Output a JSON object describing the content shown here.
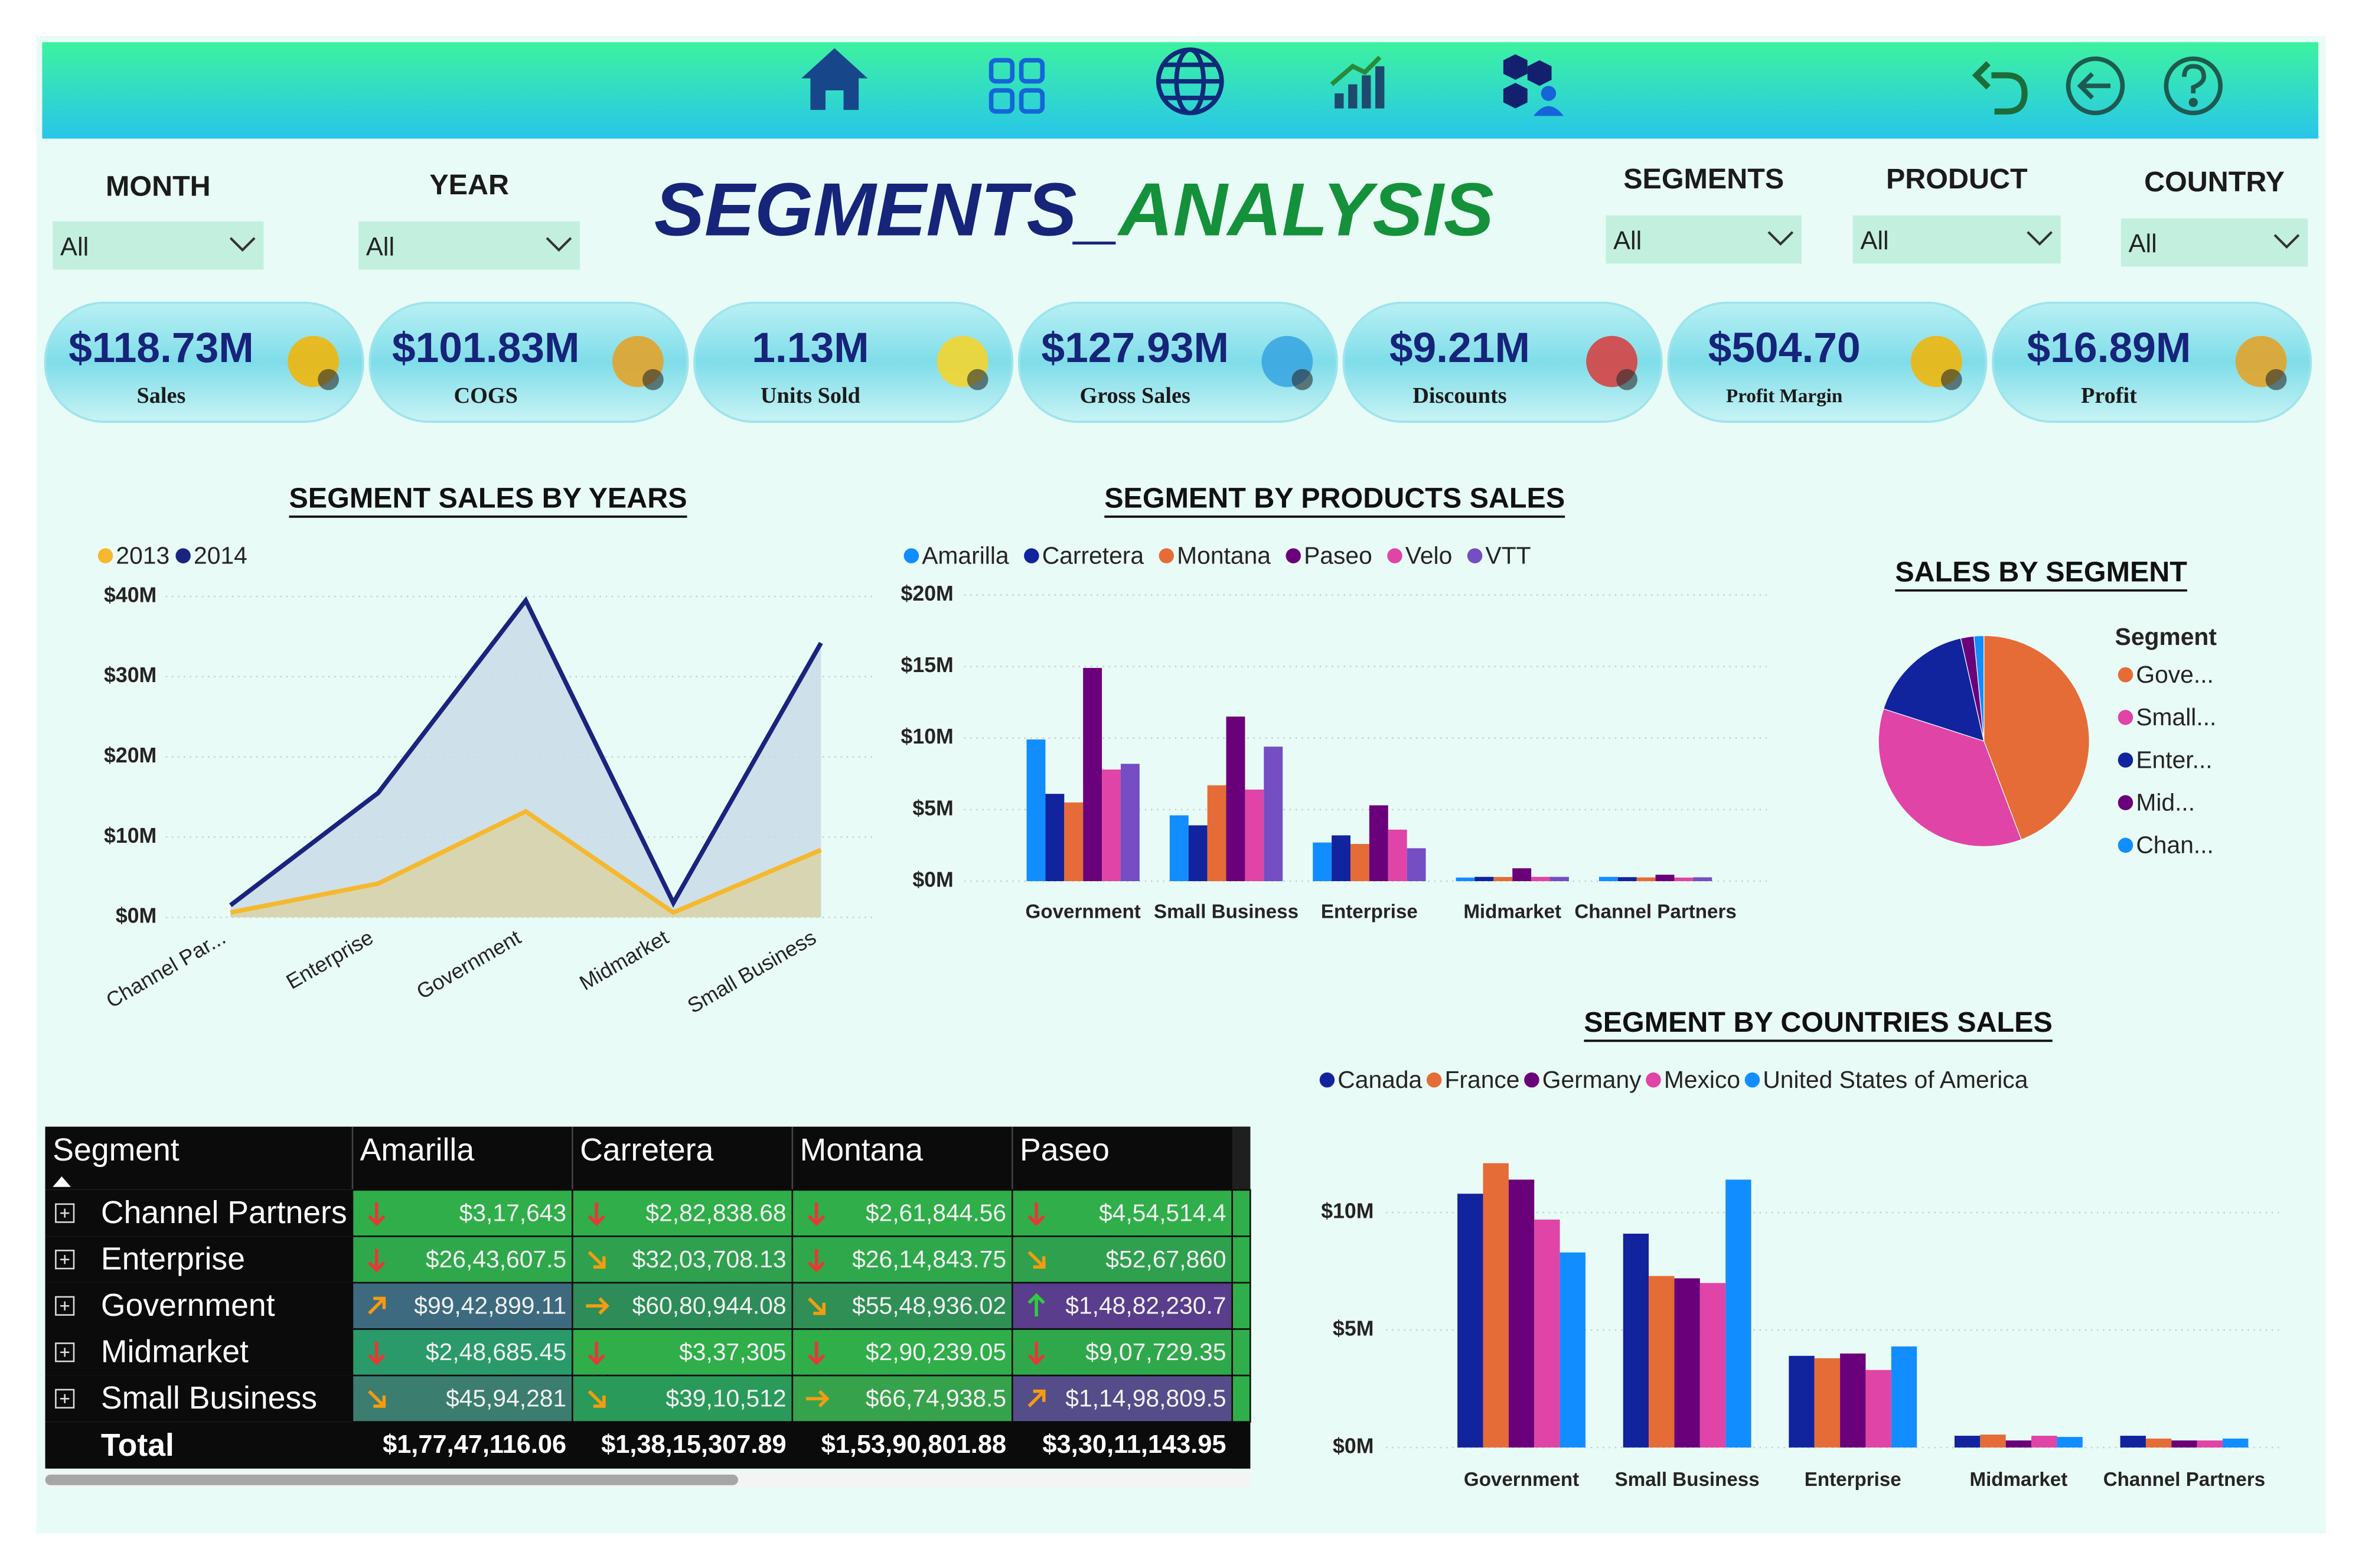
{
  "header": {
    "title_part1": "SEGMENTS_",
    "title_part2": "ANALYSIS"
  },
  "filters": [
    {
      "label": "MONTH",
      "value": "All"
    },
    {
      "label": "YEAR",
      "value": "All"
    },
    {
      "label": "SEGMENTS",
      "value": "All"
    },
    {
      "label": "PRODUCT",
      "value": "All"
    },
    {
      "label": "COUNTRY",
      "value": "All"
    }
  ],
  "kpis": [
    {
      "value": "$118.73M",
      "label": "Sales"
    },
    {
      "value": "$101.83M",
      "label": "COGS"
    },
    {
      "value": "1.13M",
      "label": "Units Sold"
    },
    {
      "value": "$127.93M",
      "label": "Gross Sales"
    },
    {
      "value": "$9.21M",
      "label": "Discounts"
    },
    {
      "value": "$504.70",
      "label": "Profit Margin"
    },
    {
      "value": "$16.89M",
      "label": "Profit"
    }
  ],
  "chart_data": [
    {
      "type": "area",
      "title": "SEGMENT SALES BY YEARS",
      "categories": [
        "Channel Par...",
        "Enterprise",
        "Government",
        "Midmarket",
        "Small Business"
      ],
      "series": [
        {
          "name": "2013",
          "color": "#f5b82e",
          "values": [
            0.6,
            4.2,
            13.2,
            0.6,
            8.4
          ]
        },
        {
          "name": "2014",
          "color": "#1a237e",
          "values": [
            1.5,
            15.5,
            39.5,
            1.8,
            34.2
          ]
        }
      ],
      "ylim": [
        0,
        40
      ],
      "yticks": [
        {
          "value": 0,
          "label": "$0M"
        },
        {
          "value": 10,
          "label": "$10M"
        },
        {
          "value": 20,
          "label": "$20M"
        },
        {
          "value": 30,
          "label": "$30M"
        },
        {
          "value": 40,
          "label": "$40M"
        }
      ],
      "grid": true
    },
    {
      "type": "bar",
      "title": "SEGMENT BY PRODUCTS SALES",
      "categories": [
        "Government",
        "Small Business",
        "Enterprise",
        "Midmarket",
        "Channel Partners"
      ],
      "series": [
        {
          "name": "Amarilla",
          "color": "#118dff",
          "values": [
            9.9,
            4.6,
            2.7,
            0.25,
            0.3
          ]
        },
        {
          "name": "Carretera",
          "color": "#12239e",
          "values": [
            6.1,
            3.9,
            3.2,
            0.3,
            0.28
          ]
        },
        {
          "name": "Montana",
          "color": "#e66c37",
          "values": [
            5.5,
            6.7,
            2.6,
            0.29,
            0.26
          ]
        },
        {
          "name": "Paseo",
          "color": "#6b007b",
          "values": [
            14.9,
            11.5,
            5.3,
            0.9,
            0.45
          ]
        },
        {
          "name": "Velo",
          "color": "#e044a7",
          "values": [
            7.8,
            6.4,
            3.6,
            0.3,
            0.25
          ]
        },
        {
          "name": "VTT",
          "color": "#744ec2",
          "values": [
            8.2,
            9.4,
            2.3,
            0.3,
            0.27
          ]
        }
      ],
      "ylim": [
        0,
        20
      ],
      "yticks": [
        {
          "value": 0,
          "label": "$0M"
        },
        {
          "value": 5,
          "label": "$5M"
        },
        {
          "value": 10,
          "label": "$10M"
        },
        {
          "value": 15,
          "label": "$15M"
        },
        {
          "value": 20,
          "label": "$20M"
        }
      ],
      "grid": true
    },
    {
      "type": "pie",
      "title": "SALES BY SEGMENT",
      "legend_title": "Segment",
      "categories": [
        "Gove...",
        "Small...",
        "Enter...",
        "Mid...",
        "Chan..."
      ],
      "values": [
        52.5,
        42.4,
        19.6,
        2.4,
        1.8
      ],
      "colors": [
        "#e66c37",
        "#e044a7",
        "#12239e",
        "#6b007b",
        "#118dff"
      ]
    },
    {
      "type": "bar",
      "title": "SEGMENT BY COUNTRIES SALES",
      "categories": [
        "Government",
        "Small Business",
        "Enterprise",
        "Midmarket",
        "Channel Partners"
      ],
      "series": [
        {
          "name": "Canada",
          "color": "#12239e",
          "values": [
            10.8,
            9.1,
            3.9,
            0.5,
            0.5
          ]
        },
        {
          "name": "France",
          "color": "#e66c37",
          "values": [
            12.1,
            7.3,
            3.8,
            0.55,
            0.38
          ]
        },
        {
          "name": "Germany",
          "color": "#6b007b",
          "values": [
            11.4,
            7.2,
            4.0,
            0.3,
            0.3
          ]
        },
        {
          "name": "Mexico",
          "color": "#e044a7",
          "values": [
            9.7,
            7.0,
            3.3,
            0.5,
            0.3
          ]
        },
        {
          "name": "United States of America",
          "color": "#118dff",
          "values": [
            8.3,
            11.4,
            4.3,
            0.45,
            0.38
          ]
        }
      ],
      "ylim": [
        0,
        13
      ],
      "yticks": [
        {
          "value": 0,
          "label": "$0M"
        },
        {
          "value": 5,
          "label": "$5M"
        },
        {
          "value": 10,
          "label": "$10M"
        }
      ],
      "grid": true
    }
  ],
  "table": {
    "columns": [
      "Segment",
      "Amarilla",
      "Carretera",
      "Montana",
      "Paseo"
    ],
    "rows": [
      [
        "Channel Partners",
        "$3,17,643",
        "$2,82,838.68",
        "$2,61,844.56",
        "$4,54,514.4"
      ],
      [
        "Enterprise",
        "$26,43,607.5",
        "$32,03,708.13",
        "$26,14,843.75",
        "$52,67,860"
      ],
      [
        "Government",
        "$99,42,899.11",
        "$60,80,944.08",
        "$55,48,936.02",
        "$1,48,82,230.7"
      ],
      [
        "Midmarket",
        "$2,48,685.45",
        "$3,37,305",
        "$2,90,239.05",
        "$9,07,729.35"
      ],
      [
        "Small Business",
        "$45,94,281",
        "$39,10,512",
        "$66,74,938.5",
        "$1,14,98,809.5"
      ]
    ],
    "total": [
      "Total",
      "$1,77,47,116.06",
      "$1,38,15,307.89",
      "$1,53,90,801.88",
      "$3,30,11,143.95"
    ]
  }
}
